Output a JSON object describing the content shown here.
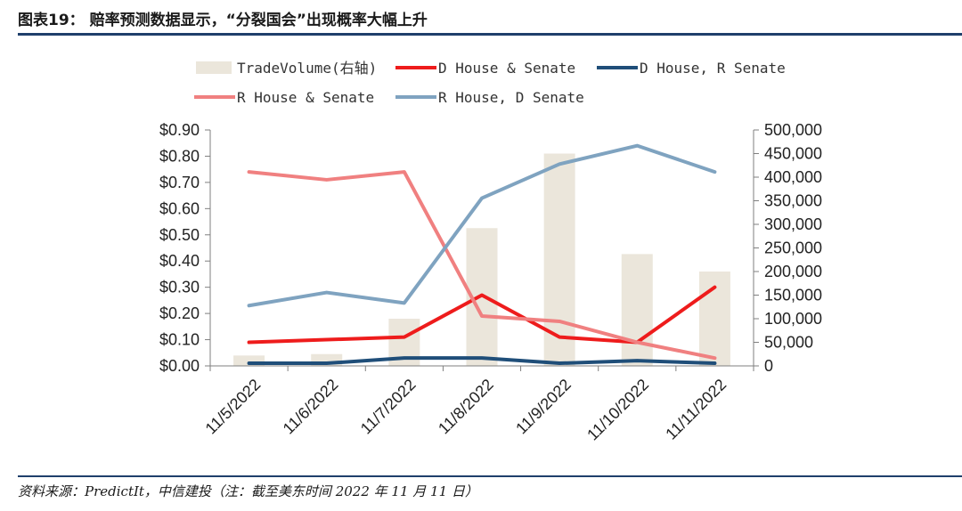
{
  "header": {
    "title": "图表19： 赔率预测数据显示，“分裂国会”出现概率大幅上升"
  },
  "footer": {
    "source": "资料来源：PredictIt，中信建投（注：截至美东时间 2022 年 11 月 11 日）"
  },
  "chart_data": {
    "type": "line",
    "categories": [
      "11/5/2022",
      "11/6/2022",
      "11/7/2022",
      "11/8/2022",
      "11/9/2022",
      "11/10/2022",
      "11/11/2022"
    ],
    "y_left": {
      "ylim": [
        0,
        0.9
      ],
      "ticks": [
        0,
        0.1,
        0.2,
        0.3,
        0.4,
        0.5,
        0.6,
        0.7,
        0.8,
        0.9
      ],
      "tick_labels": [
        "$0.00",
        "$0.10",
        "$0.20",
        "$0.30",
        "$0.40",
        "$0.50",
        "$0.60",
        "$0.70",
        "$0.80",
        "$0.90"
      ]
    },
    "y_right": {
      "ylim": [
        0,
        500000
      ],
      "ticks": [
        0,
        50000,
        100000,
        150000,
        200000,
        250000,
        300000,
        350000,
        400000,
        450000,
        500000
      ],
      "tick_labels": [
        "0",
        "50,000",
        "100,000",
        "150,000",
        "200,000",
        "250,000",
        "300,000",
        "350,000",
        "400,000",
        "450,000",
        "500,000"
      ]
    },
    "bars": {
      "name": "TradeVolume(右轴)",
      "axis": "right",
      "color": "#ebe6db",
      "values": [
        22000,
        25000,
        100000,
        292000,
        450000,
        237000,
        200000
      ]
    },
    "series": [
      {
        "name": "D House & Senate",
        "color": "#ee1c1c",
        "values": [
          0.09,
          0.1,
          0.11,
          0.27,
          0.11,
          0.09,
          0.3
        ]
      },
      {
        "name": "D House, R Senate",
        "color": "#1f4e79",
        "values": [
          0.01,
          0.01,
          0.03,
          0.03,
          0.01,
          0.02,
          0.01
        ]
      },
      {
        "name": "R House & Senate",
        "color": "#f08080",
        "values": [
          0.74,
          0.71,
          0.74,
          0.19,
          0.17,
          0.09,
          0.03
        ]
      },
      {
        "name": "R House, D Senate",
        "color": "#7fa3c0",
        "values": [
          0.23,
          0.28,
          0.24,
          0.64,
          0.77,
          0.84,
          0.74
        ]
      }
    ]
  }
}
